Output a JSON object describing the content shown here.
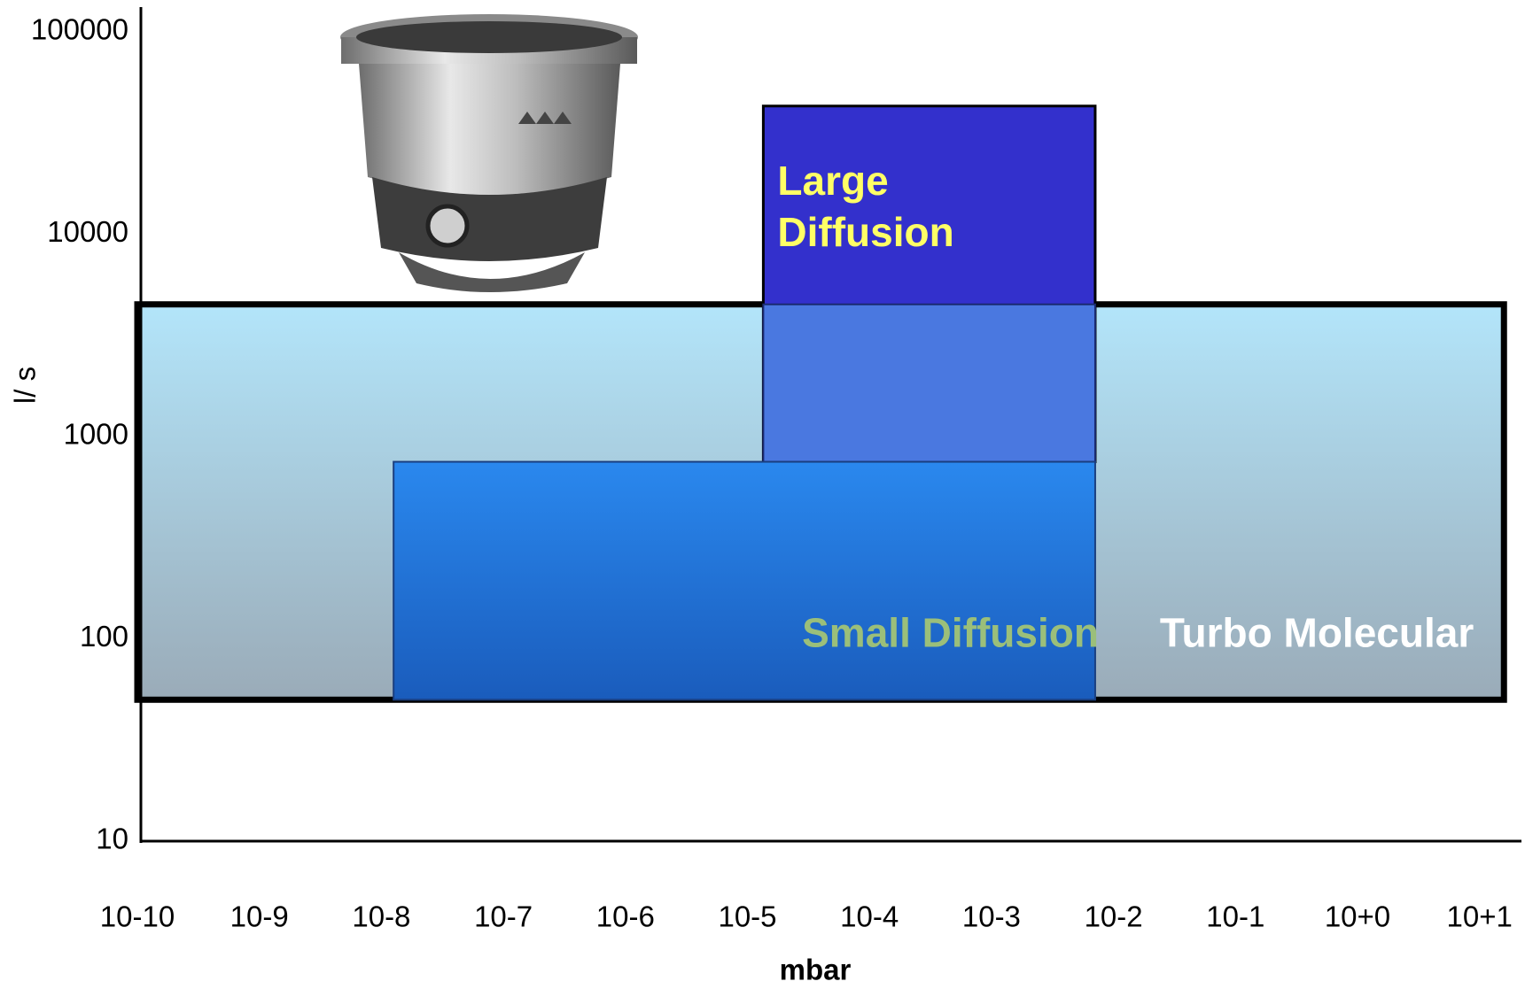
{
  "chart_data": {
    "type": "range",
    "ylabel": "l/ s",
    "xlabel": "mbar",
    "log_y": true,
    "xlim": [
      -10,
      1.2
    ],
    "xticks": [
      {
        "value": -10,
        "label": "10-10"
      },
      {
        "value": -9,
        "label": "10-9"
      },
      {
        "value": -8,
        "label": "10-8"
      },
      {
        "value": -7,
        "label": "10-7"
      },
      {
        "value": -6,
        "label": "10-6"
      },
      {
        "value": -5,
        "label": "10-5"
      },
      {
        "value": -4,
        "label": "10-4"
      },
      {
        "value": -3,
        "label": "10-3"
      },
      {
        "value": -2,
        "label": "10-2"
      },
      {
        "value": -1,
        "label": "10-1"
      },
      {
        "value": 0,
        "label": "10+0"
      },
      {
        "value": 1,
        "label": "10+1"
      }
    ],
    "ylim": [
      10,
      100000
    ],
    "yticks": [
      10,
      100,
      1000,
      10000,
      100000
    ],
    "series": [
      {
        "name": "Turbo Molecular",
        "color": "#b3e5fa",
        "color2": "#9aabb8",
        "label_color": "#ffffff",
        "x": [
          -10,
          1.2
        ],
        "values": [
          50,
          4500
        ]
      },
      {
        "name": "Large Diffusion",
        "color": "#3330cc",
        "color2": "#3330cc",
        "label_color": "#ffff66",
        "x": [
          -4.87,
          -2.15
        ],
        "values": [
          750,
          43000
        ]
      },
      {
        "name": "Small Diffusion",
        "color": "#2a88ee",
        "color2": "#1a5cbc",
        "label_color": "#9bbf7a",
        "x": [
          -7.9,
          -2.15
        ],
        "values": [
          50,
          750
        ]
      }
    ]
  }
}
